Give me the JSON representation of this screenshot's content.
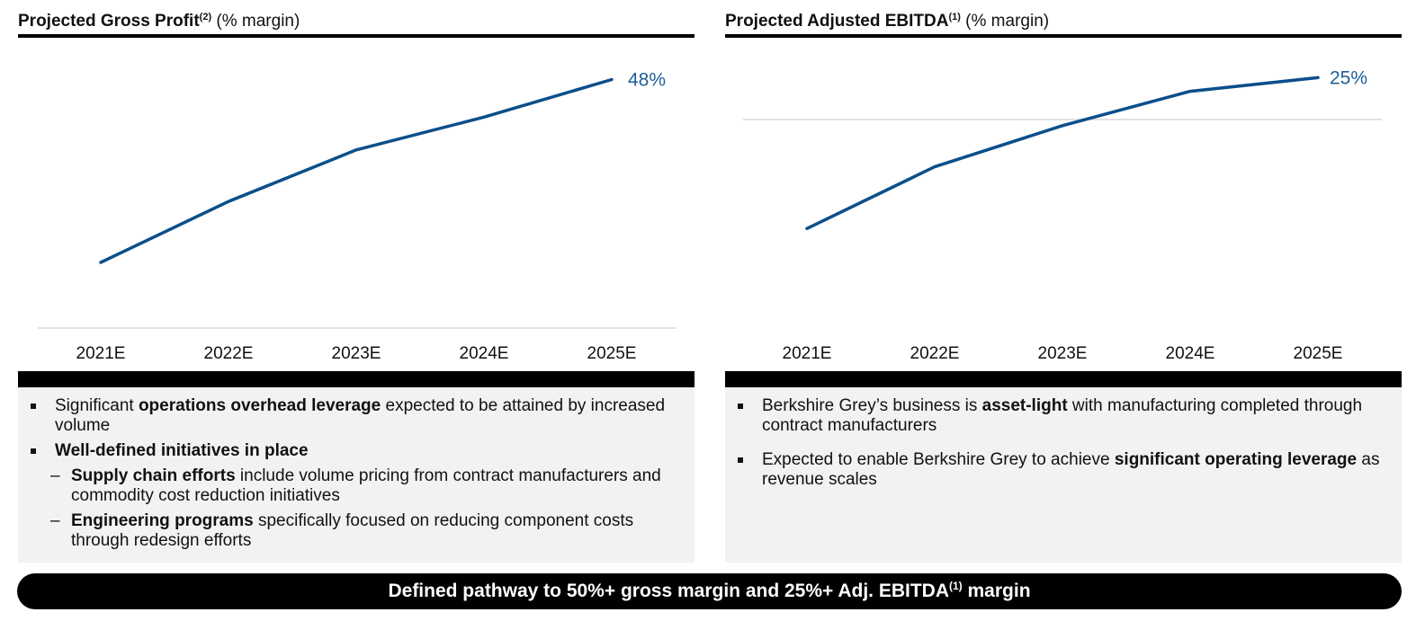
{
  "left": {
    "title_bold": "Projected Gross Profit",
    "title_sup": "(2)",
    "title_rest": " (% margin)",
    "bullets": {
      "b1": {
        "pre": "Significant ",
        "bold": "operations overhead leverage",
        "post": " expected to be attained by increased volume"
      },
      "b2": {
        "bold": "Well-defined initiatives in place"
      },
      "s1": {
        "bold": "Supply chain efforts",
        "post": " include volume pricing from contract manufacturers and commodity cost reduction initiatives"
      },
      "s2": {
        "bold": "Engineering programs",
        "post": " specifically focused on reducing component costs through redesign efforts"
      }
    }
  },
  "right": {
    "title_bold": "Projected Adjusted EBITDA",
    "title_sup": "(1)",
    "title_rest": " (% margin)",
    "bullets": {
      "b1": {
        "pre": "Berkshire Grey’s business is ",
        "bold": "asset-light",
        "post": " with manufacturing completed through contract manufacturers"
      },
      "b2": {
        "pre": "Expected to enable Berkshire Grey to achieve ",
        "bold": "significant operating leverage",
        "post": " as revenue scales"
      }
    }
  },
  "footer": {
    "text_before": "Defined pathway to 50%+ gross margin and 25%+ Adj. EBITDA",
    "sup": "(1)",
    "text_after": " margin"
  },
  "colors": {
    "line": "#0b4f8a",
    "label": "#1f5f99",
    "axis": "#d9d9d9"
  },
  "chart_data": [
    {
      "type": "line",
      "categories": [
        "2021E",
        "2022E",
        "2023E",
        "2024E",
        "2025E"
      ],
      "series": [
        {
          "values": [
            9,
            22,
            33,
            40,
            48
          ],
          "end_label": "48%"
        }
      ],
      "ylim": [
        -5,
        55
      ]
    },
    {
      "type": "line",
      "categories": [
        "2021E",
        "2022E",
        "2023E",
        "2024E",
        "2025E"
      ],
      "series": [
        {
          "values": [
            -19,
            -1,
            11,
            21,
            25
          ],
          "end_label": "25%"
        }
      ],
      "ylim": [
        -48,
        34
      ]
    }
  ]
}
